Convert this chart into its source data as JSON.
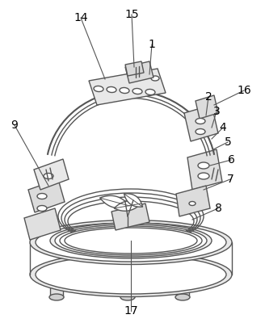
{
  "bg_color": "#ffffff",
  "line_color": "#555555",
  "lw": 1.0,
  "figsize": [
    3.28,
    4.0
  ],
  "dpi": 100,
  "label_fs": 10,
  "labels": [
    [
      "14",
      98,
      22
    ],
    [
      "15",
      162,
      18
    ],
    [
      "1",
      188,
      55
    ],
    [
      "2",
      258,
      120
    ],
    [
      "3",
      268,
      138
    ],
    [
      "4",
      276,
      158
    ],
    [
      "5",
      282,
      176
    ],
    [
      "6",
      286,
      198
    ],
    [
      "7",
      285,
      222
    ],
    [
      "8",
      270,
      258
    ],
    [
      "9",
      18,
      155
    ],
    [
      "16",
      302,
      112
    ],
    [
      "17",
      162,
      385
    ]
  ]
}
